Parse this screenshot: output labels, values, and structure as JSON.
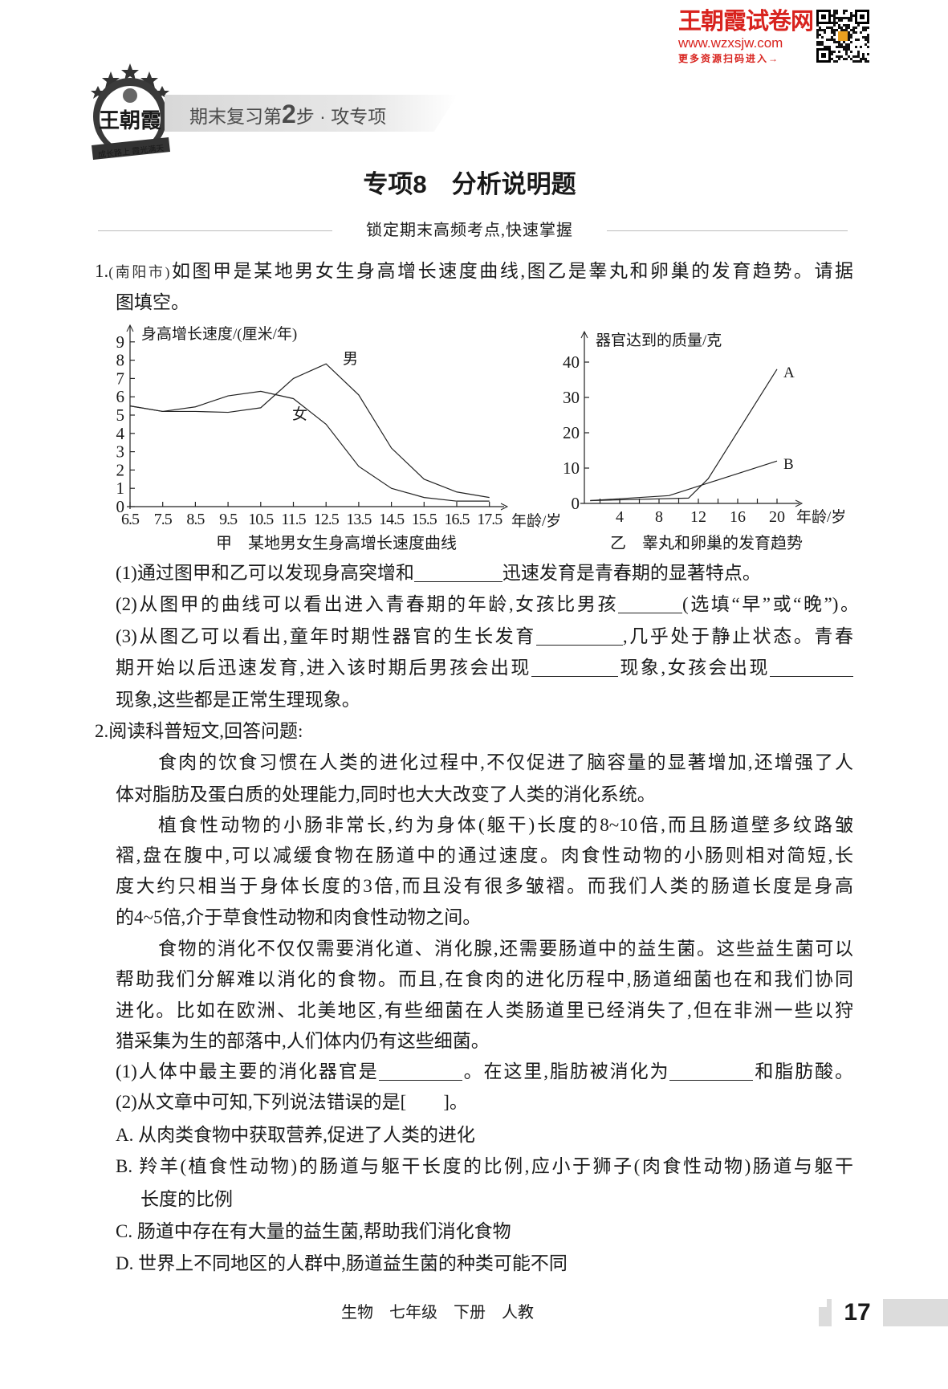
{
  "header": {
    "brand_title": "王朝霞试卷网",
    "brand_url": "www.wzxsjw.com",
    "brand_cta": "更多资源扫码进入→",
    "brand_color": "#d8231e",
    "logo_text": "王朝霞",
    "logo_ribbon": "成长路上  霞光满天",
    "banner_pre": "期末复习第",
    "banner_step": "2",
    "banner_post": "步 · 攻专项"
  },
  "title": "专项8　分析说明题",
  "subtitle": "锁定期末高频考点,快速掌握",
  "lines": [
    {
      "id": "q1-l1",
      "seg": [
        {
          "t": "1."
        },
        {
          "t": "(南阳市)",
          "cls": "small"
        },
        {
          "t": "如图甲是某地男女生身高增长速度曲线,图乙是睾丸和卵巢的发育趋势。请据"
        }
      ]
    },
    {
      "id": "q1-l2",
      "seg": [
        {
          "t": "图填空。"
        }
      ]
    },
    {
      "id": "q1-s1",
      "seg": [
        {
          "t": "(1)通过图甲和乙可以发现身高突增和"
        },
        {
          "blank": "b1"
        },
        {
          "t": "迅速发育是青春期的显著特点。"
        }
      ]
    },
    {
      "id": "q1-s2",
      "seg": [
        {
          "t": "(2)从图甲的曲线可以看出进入青春期的年龄,女孩比男孩"
        },
        {
          "blank": "b2"
        },
        {
          "t": "(选填“早”或“晚”)。"
        }
      ]
    },
    {
      "id": "q1-s3a",
      "seg": [
        {
          "t": "(3)从图乙可以看出,童年时期性器官的生长发育"
        },
        {
          "blank": "b3"
        },
        {
          "t": ",几乎处于静止状态。青春"
        }
      ]
    },
    {
      "id": "q1-s3b",
      "seg": [
        {
          "t": "期开始以后迅速发育,进入该时期后男孩会出现"
        },
        {
          "blank": "b4"
        },
        {
          "t": "现象,女孩会出现"
        },
        {
          "blank": "b5"
        }
      ]
    },
    {
      "id": "q1-s3c",
      "seg": [
        {
          "t": "现象,这些都是正常生理现象。"
        }
      ]
    },
    {
      "id": "q2-head",
      "seg": [
        {
          "t": "2.阅读科普短文,回答问题:"
        }
      ]
    },
    {
      "id": "p1-l1",
      "seg": [
        {
          "t": "食肉的饮食习惯在人类的进化过程中,不仅促进了脑容量的显著增加,还增强了人"
        }
      ]
    },
    {
      "id": "p1-l2",
      "seg": [
        {
          "t": "体对脂肪及蛋白质的处理能力,同时也大大改变了人类的消化系统。"
        }
      ]
    },
    {
      "id": "p2-l1",
      "seg": [
        {
          "t": "植食性动物的小肠非常长,约为身体(躯干)长度的8~10倍,而且肠道壁多纹路皱"
        }
      ]
    },
    {
      "id": "p2-l2",
      "seg": [
        {
          "t": "褶,盘在腹中,可以减缓食物在肠道中的通过速度。肉食性动物的小肠则相对简短,长"
        }
      ]
    },
    {
      "id": "p2-l3",
      "seg": [
        {
          "t": "度大约只相当于身体长度的3倍,而且没有很多皱褶。而我们人类的肠道长度是身高"
        }
      ]
    },
    {
      "id": "p2-l4",
      "seg": [
        {
          "t": "的4~5倍,介于草食性动物和肉食性动物之间。"
        }
      ]
    },
    {
      "id": "p3-l1",
      "seg": [
        {
          "t": "食物的消化不仅仅需要消化道、消化腺,还需要肠道中的益生菌。这些益生菌可以"
        }
      ]
    },
    {
      "id": "p3-l2",
      "seg": [
        {
          "t": "帮助我们分解难以消化的食物。而且,在食肉的进化历程中,肠道细菌也在和我们协同"
        }
      ]
    },
    {
      "id": "p3-l3",
      "seg": [
        {
          "t": "进化。比如在欧洲、北美地区,有些细菌在人类肠道里已经消失了,但在非洲一些以狩"
        }
      ]
    },
    {
      "id": "p3-l4",
      "seg": [
        {
          "t": "猎采集为生的部落中,人们体内仍有这些细菌。"
        }
      ]
    },
    {
      "id": "q2-s1",
      "seg": [
        {
          "t": "(1)人体中最主要的消化器官是"
        },
        {
          "blank": "b6"
        },
        {
          "t": "。在这里,脂肪被消化为"
        },
        {
          "blank": "b7"
        },
        {
          "t": "和脂肪酸。"
        }
      ]
    },
    {
      "id": "q2-s2",
      "seg": [
        {
          "t": "(2)从文章中可知,下列说法错误的是["
        },
        {
          "bracket": true
        },
        {
          "t": "]。"
        }
      ]
    },
    {
      "id": "opt-a",
      "seg": [
        {
          "t": "A. 从肉类食物中获取营养,促进了人类的进化"
        }
      ]
    },
    {
      "id": "opt-b1",
      "seg": [
        {
          "t": "B. 羚羊(植食性动物)的肠道与躯干长度的比例,应小于狮子(肉食性动物)肠道与躯干"
        }
      ]
    },
    {
      "id": "opt-b2",
      "seg": [
        {
          "t": "长度的比例"
        }
      ]
    },
    {
      "id": "opt-c",
      "seg": [
        {
          "t": "C. 肠道中存在有大量的益生菌,帮助我们消化食物"
        }
      ]
    },
    {
      "id": "opt-d",
      "seg": [
        {
          "t": "D. 世界上不同地区的人群中,肠道益生菌的种类可能不同"
        }
      ]
    }
  ],
  "footer": {
    "text": "生物　七年级　下册　人教",
    "page_number": "17"
  },
  "chart_data": [
    {
      "type": "line",
      "title": "甲　某地男女生身高增长速度曲线",
      "ylabel": "身高增长速度/(厘米/年)",
      "xlabel": "年龄/岁",
      "x": [
        6.5,
        7.5,
        8.5,
        9.5,
        10.5,
        11.5,
        12.5,
        13.5,
        14.5,
        15.5,
        16.5,
        17.5
      ],
      "x_tick_labels": [
        "6.5",
        "7.5",
        "8.5",
        "9.5",
        "10.5",
        "11.5",
        "12.5",
        "13.5",
        "14.5",
        "15.5",
        "16.5",
        "17.5"
      ],
      "y_ticks": [
        "0",
        "1",
        "2",
        "3",
        "4",
        "5",
        "6",
        "7",
        "8",
        "9"
      ],
      "ylim": [
        0,
        9
      ],
      "grid": false,
      "series": [
        {
          "name": "男",
          "values": [
            5.5,
            5.2,
            5.2,
            5.15,
            5.4,
            7.0,
            7.8,
            6.1,
            3.2,
            1.5,
            0.8,
            0.5
          ]
        },
        {
          "name": "女",
          "values": [
            5.5,
            5.2,
            5.45,
            6.05,
            6.3,
            5.9,
            4.5,
            2.2,
            1.0,
            0.5,
            0.3,
            0.3
          ]
        }
      ]
    },
    {
      "type": "line",
      "title": "乙　睾丸和卵巢的发育趋势",
      "ylabel": "器官达到的质量/克",
      "xlabel": "年龄/岁",
      "x_ticks": [
        "4",
        "8",
        "12",
        "16",
        "20"
      ],
      "y_ticks": [
        "0",
        "10",
        "20",
        "30",
        "40"
      ],
      "xlim": [
        0,
        22
      ],
      "ylim": [
        0,
        45
      ],
      "grid": false,
      "series": [
        {
          "name": "A",
          "points": [
            [
              1,
              0.8
            ],
            [
              11,
              1.5
            ],
            [
              13,
              7
            ],
            [
              20,
              38
            ]
          ]
        },
        {
          "name": "B",
          "points": [
            [
              1,
              0.8
            ],
            [
              9,
              2.2
            ],
            [
              20,
              12
            ]
          ]
        }
      ]
    }
  ]
}
